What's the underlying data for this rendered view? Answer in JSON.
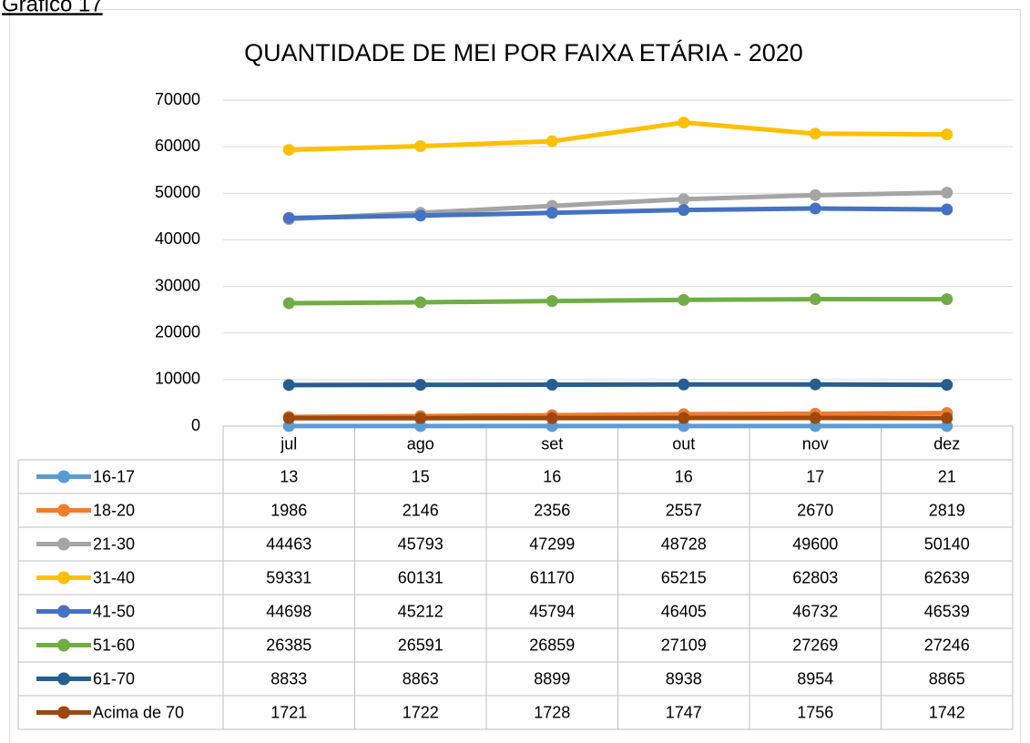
{
  "caption": "Gráfico 17",
  "chart_data": {
    "type": "line",
    "title": "QUANTIDADE DE MEI POR FAIXA ETÁRIA - 2020",
    "categories": [
      "jul",
      "ago",
      "set",
      "out",
      "nov",
      "dez"
    ],
    "ylim": [
      0,
      70000
    ],
    "yticks": [
      0,
      10000,
      20000,
      30000,
      40000,
      50000,
      60000,
      70000
    ],
    "grid": true,
    "series": [
      {
        "name": "16-17",
        "color": "#5b9bd5",
        "values": [
          13,
          15,
          16,
          16,
          17,
          21
        ]
      },
      {
        "name": "18-20",
        "color": "#ed7d31",
        "values": [
          1986,
          2146,
          2356,
          2557,
          2670,
          2819
        ]
      },
      {
        "name": "21-30",
        "color": "#a5a5a5",
        "values": [
          44463,
          45793,
          47299,
          48728,
          49600,
          50140
        ]
      },
      {
        "name": "31-40",
        "color": "#ffc000",
        "values": [
          59331,
          60131,
          61170,
          65215,
          62803,
          62639
        ]
      },
      {
        "name": "41-50",
        "color": "#4472c4",
        "values": [
          44698,
          45212,
          45794,
          46405,
          46732,
          46539
        ]
      },
      {
        "name": "51-60",
        "color": "#70ad47",
        "values": [
          26385,
          26591,
          26859,
          27109,
          27269,
          27246
        ]
      },
      {
        "name": "61-70",
        "color": "#255e91",
        "values": [
          8833,
          8863,
          8899,
          8938,
          8954,
          8865
        ]
      },
      {
        "name": "Acima de 70",
        "color": "#9e480e",
        "values": [
          1721,
          1722,
          1728,
          1747,
          1756,
          1742
        ]
      }
    ]
  }
}
